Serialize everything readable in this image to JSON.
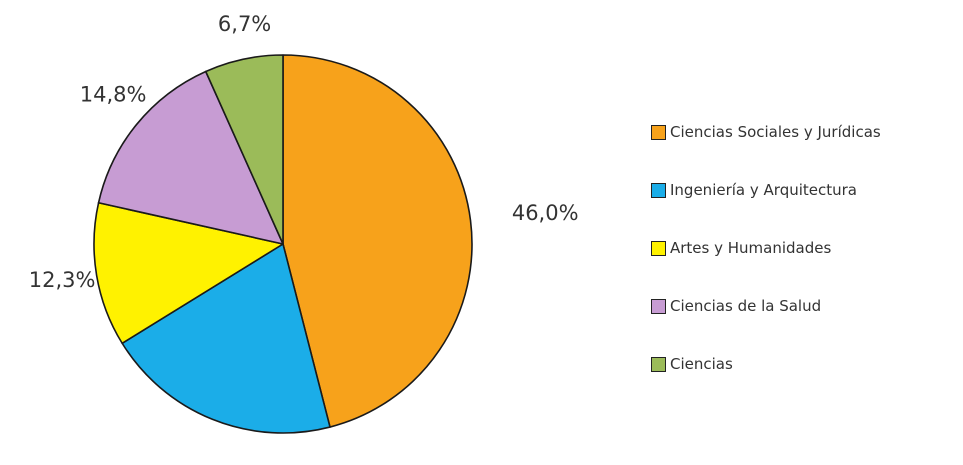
{
  "chart_data": {
    "type": "pie",
    "title": "",
    "start_angle_deg": 0,
    "direction": "clockwise",
    "legend_position": "right",
    "slices": [
      {
        "label": "Ciencias Sociales y Jurídicas",
        "value": 46.0,
        "display": "46,0%",
        "color": "#F7A21B"
      },
      {
        "label": "Ingeniería y Arquitectura",
        "value": 20.2,
        "display": "20,2%",
        "color": "#1BADE8"
      },
      {
        "label": "Artes y Humanidades",
        "value": 12.3,
        "display": "12,3%",
        "color": "#FFF200"
      },
      {
        "label": "Ciencias de la Salud",
        "value": 14.8,
        "display": "14,8%",
        "color": "#C79CD3"
      },
      {
        "label": "Ciencias",
        "value": 6.7,
        "display": "6,7%",
        "color": "#9BBB59"
      }
    ]
  }
}
